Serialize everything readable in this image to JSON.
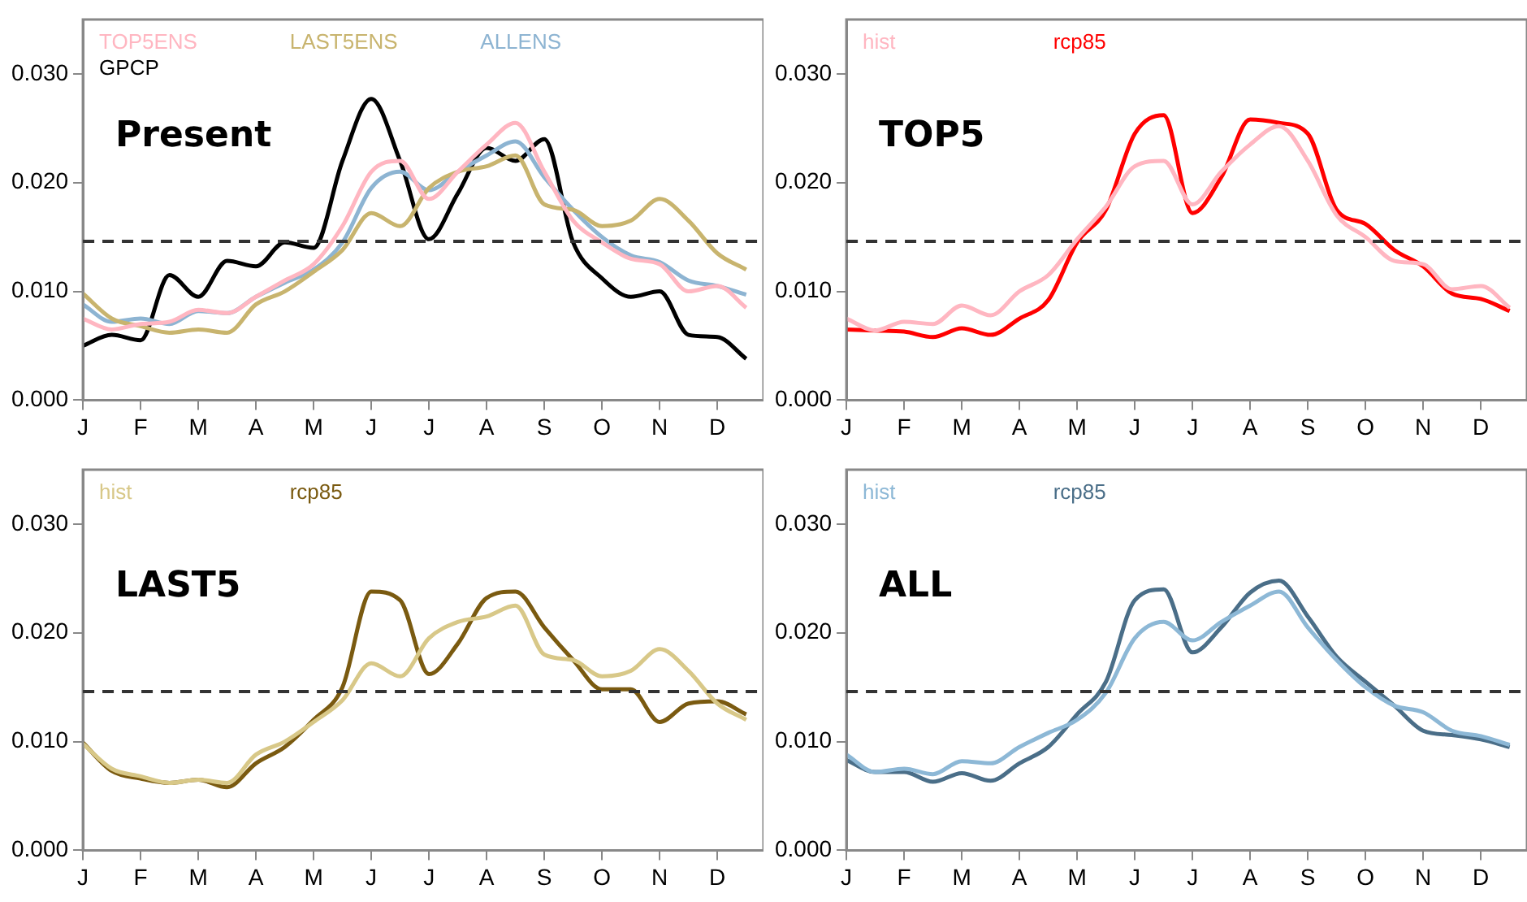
{
  "chart_data": [
    {
      "type": "line",
      "annotations": [
        "Present"
      ],
      "legend": "top left",
      "marker": "none",
      "ylim": [
        0,
        0.035
      ],
      "categories": [
        "J",
        null,
        "F",
        null,
        "M",
        null,
        "A",
        null,
        "M",
        null,
        "J",
        null,
        "J",
        null,
        "A",
        null,
        "S",
        null,
        "O",
        null,
        "N",
        null,
        "D",
        null
      ],
      "yticks": [
        {
          "value": 0,
          "label": "0.000"
        },
        {
          "value": 0.01,
          "label": "0.010"
        },
        {
          "value": 0.02,
          "label": "0.020"
        },
        {
          "value": 0.03,
          "label": "0.030"
        }
      ],
      "ref_lines": [
        {
          "axis": "y",
          "value": 0.0146,
          "color": "#333333",
          "line_style": "dashed"
        }
      ],
      "series": [
        {
          "name": "TOP5ENS",
          "color": "#ffb6c1",
          "values": [
            0.0075,
            0.0065,
            0.007,
            0.0072,
            0.0083,
            0.008,
            0.0095,
            0.011,
            0.0125,
            0.016,
            0.021,
            0.022,
            0.0185,
            0.021,
            0.0235,
            0.0255,
            0.021,
            0.0165,
            0.0145,
            0.013,
            0.0125,
            0.01,
            0.0105,
            0.0085
          ]
        },
        {
          "name": "LAST5ENS",
          "color": "#c8b46e",
          "values": [
            0.0098,
            0.0075,
            0.0068,
            0.0062,
            0.0065,
            0.0062,
            0.0088,
            0.01,
            0.0118,
            0.0138,
            0.0172,
            0.016,
            0.0195,
            0.021,
            0.0215,
            0.0225,
            0.018,
            0.0175,
            0.016,
            0.0165,
            0.0185,
            0.0165,
            0.0135,
            0.012
          ]
        },
        {
          "name": "ALLENS",
          "color": "#8db4d2",
          "values": [
            0.0088,
            0.0072,
            0.0075,
            0.007,
            0.0082,
            0.008,
            0.0095,
            0.0108,
            0.012,
            0.0145,
            0.0195,
            0.021,
            0.0193,
            0.021,
            0.0225,
            0.0238,
            0.0205,
            0.0175,
            0.015,
            0.0133,
            0.0127,
            0.011,
            0.0105,
            0.0097
          ]
        },
        {
          "name": "GPCP",
          "color": "#000000",
          "values": [
            0.005,
            0.006,
            0.0055,
            0.0115,
            0.0095,
            0.0128,
            0.0123,
            0.0145,
            0.014,
            0.022,
            0.0277,
            0.022,
            0.0148,
            0.019,
            0.0232,
            0.022,
            0.024,
            0.0145,
            0.0112,
            0.0095,
            0.01,
            0.006,
            0.0058,
            0.0038
          ]
        }
      ]
    },
    {
      "type": "line",
      "annotations": [
        "TOP5"
      ],
      "legend": "top left",
      "marker": "none",
      "ylim": [
        0,
        0.035
      ],
      "categories": [
        "J",
        null,
        "F",
        null,
        "M",
        null,
        "A",
        null,
        "M",
        null,
        "J",
        null,
        "J",
        null,
        "A",
        null,
        "S",
        null,
        "O",
        null,
        "N",
        null,
        "D",
        null
      ],
      "yticks": [
        {
          "value": 0,
          "label": "0.000"
        },
        {
          "value": 0.01,
          "label": "0.010"
        },
        {
          "value": 0.02,
          "label": "0.020"
        },
        {
          "value": 0.03,
          "label": "0.030"
        }
      ],
      "ref_lines": [
        {
          "axis": "y",
          "value": 0.0146,
          "color": "#333333",
          "line_style": "dashed"
        }
      ],
      "series": [
        {
          "name": "hist",
          "color": "#ffb6c1",
          "values": [
            0.0075,
            0.0064,
            0.0072,
            0.007,
            0.0087,
            0.0078,
            0.01,
            0.0115,
            0.0148,
            0.0178,
            0.0215,
            0.022,
            0.018,
            0.021,
            0.0235,
            0.0252,
            0.022,
            0.017,
            0.015,
            0.0128,
            0.0125,
            0.0102,
            0.0105,
            0.0085
          ]
        },
        {
          "name": "rcp85",
          "color": "#ff0000",
          "values": [
            0.0065,
            0.0064,
            0.0063,
            0.0058,
            0.0066,
            0.006,
            0.0075,
            0.0092,
            0.0145,
            0.0175,
            0.0245,
            0.0262,
            0.0172,
            0.0205,
            0.0258,
            0.0255,
            0.0245,
            0.0175,
            0.0162,
            0.0138,
            0.0123,
            0.0098,
            0.0093,
            0.0082
          ]
        }
      ]
    },
    {
      "type": "line",
      "annotations": [
        "LAST5"
      ],
      "legend": "top left",
      "marker": "none",
      "ylim": [
        0,
        0.035
      ],
      "categories": [
        "J",
        null,
        "F",
        null,
        "M",
        null,
        "A",
        null,
        "M",
        null,
        "J",
        null,
        "J",
        null,
        "A",
        null,
        "S",
        null,
        "O",
        null,
        "N",
        null,
        "D",
        null
      ],
      "yticks": [
        {
          "value": 0,
          "label": "0.000"
        },
        {
          "value": 0.01,
          "label": "0.010"
        },
        {
          "value": 0.02,
          "label": "0.020"
        },
        {
          "value": 0.03,
          "label": "0.030"
        }
      ],
      "ref_lines": [
        {
          "axis": "y",
          "value": 0.0146,
          "color": "#333333",
          "line_style": "dashed"
        }
      ],
      "series": [
        {
          "name": "hist",
          "color": "#d8c888",
          "values": [
            0.0098,
            0.0075,
            0.0068,
            0.0062,
            0.0065,
            0.0062,
            0.0088,
            0.01,
            0.0118,
            0.0138,
            0.0172,
            0.016,
            0.0195,
            0.021,
            0.0215,
            0.0225,
            0.018,
            0.0175,
            0.016,
            0.0165,
            0.0185,
            0.0165,
            0.0135,
            0.012
          ]
        },
        {
          "name": "rcp85",
          "color": "#7a5a10",
          "values": [
            0.0099,
            0.0073,
            0.0066,
            0.0062,
            0.0065,
            0.0058,
            0.008,
            0.0095,
            0.012,
            0.015,
            0.0238,
            0.023,
            0.0162,
            0.019,
            0.0232,
            0.0238,
            0.0205,
            0.0175,
            0.0148,
            0.0148,
            0.0118,
            0.0135,
            0.0137,
            0.0125
          ]
        }
      ]
    },
    {
      "type": "line",
      "annotations": [
        "ALL"
      ],
      "legend": "top left",
      "marker": "none",
      "ylim": [
        0,
        0.035
      ],
      "categories": [
        "J",
        null,
        "F",
        null,
        "M",
        null,
        "A",
        null,
        "M",
        null,
        "J",
        null,
        "J",
        null,
        "A",
        null,
        "S",
        null,
        "O",
        null,
        "N",
        null,
        "D",
        null
      ],
      "yticks": [
        {
          "value": 0,
          "label": "0.000"
        },
        {
          "value": 0.01,
          "label": "0.010"
        },
        {
          "value": 0.02,
          "label": "0.020"
        },
        {
          "value": 0.03,
          "label": "0.030"
        }
      ],
      "ref_lines": [
        {
          "axis": "y",
          "value": 0.0146,
          "color": "#333333",
          "line_style": "dashed"
        }
      ],
      "series": [
        {
          "name": "hist",
          "color": "#8db8d6",
          "values": [
            0.0088,
            0.0072,
            0.0075,
            0.007,
            0.0082,
            0.008,
            0.0095,
            0.0108,
            0.012,
            0.0145,
            0.0195,
            0.021,
            0.0193,
            0.021,
            0.0225,
            0.0238,
            0.0205,
            0.0175,
            0.015,
            0.0133,
            0.0127,
            0.011,
            0.0105,
            0.0097
          ]
        },
        {
          "name": "rcp85",
          "color": "#4a6e88",
          "values": [
            0.0083,
            0.0072,
            0.0072,
            0.0063,
            0.0071,
            0.0064,
            0.008,
            0.0095,
            0.0125,
            0.0155,
            0.023,
            0.024,
            0.0182,
            0.0205,
            0.0237,
            0.0248,
            0.0215,
            0.0178,
            0.0155,
            0.0133,
            0.011,
            0.0106,
            0.0102,
            0.0095
          ]
        }
      ]
    }
  ]
}
